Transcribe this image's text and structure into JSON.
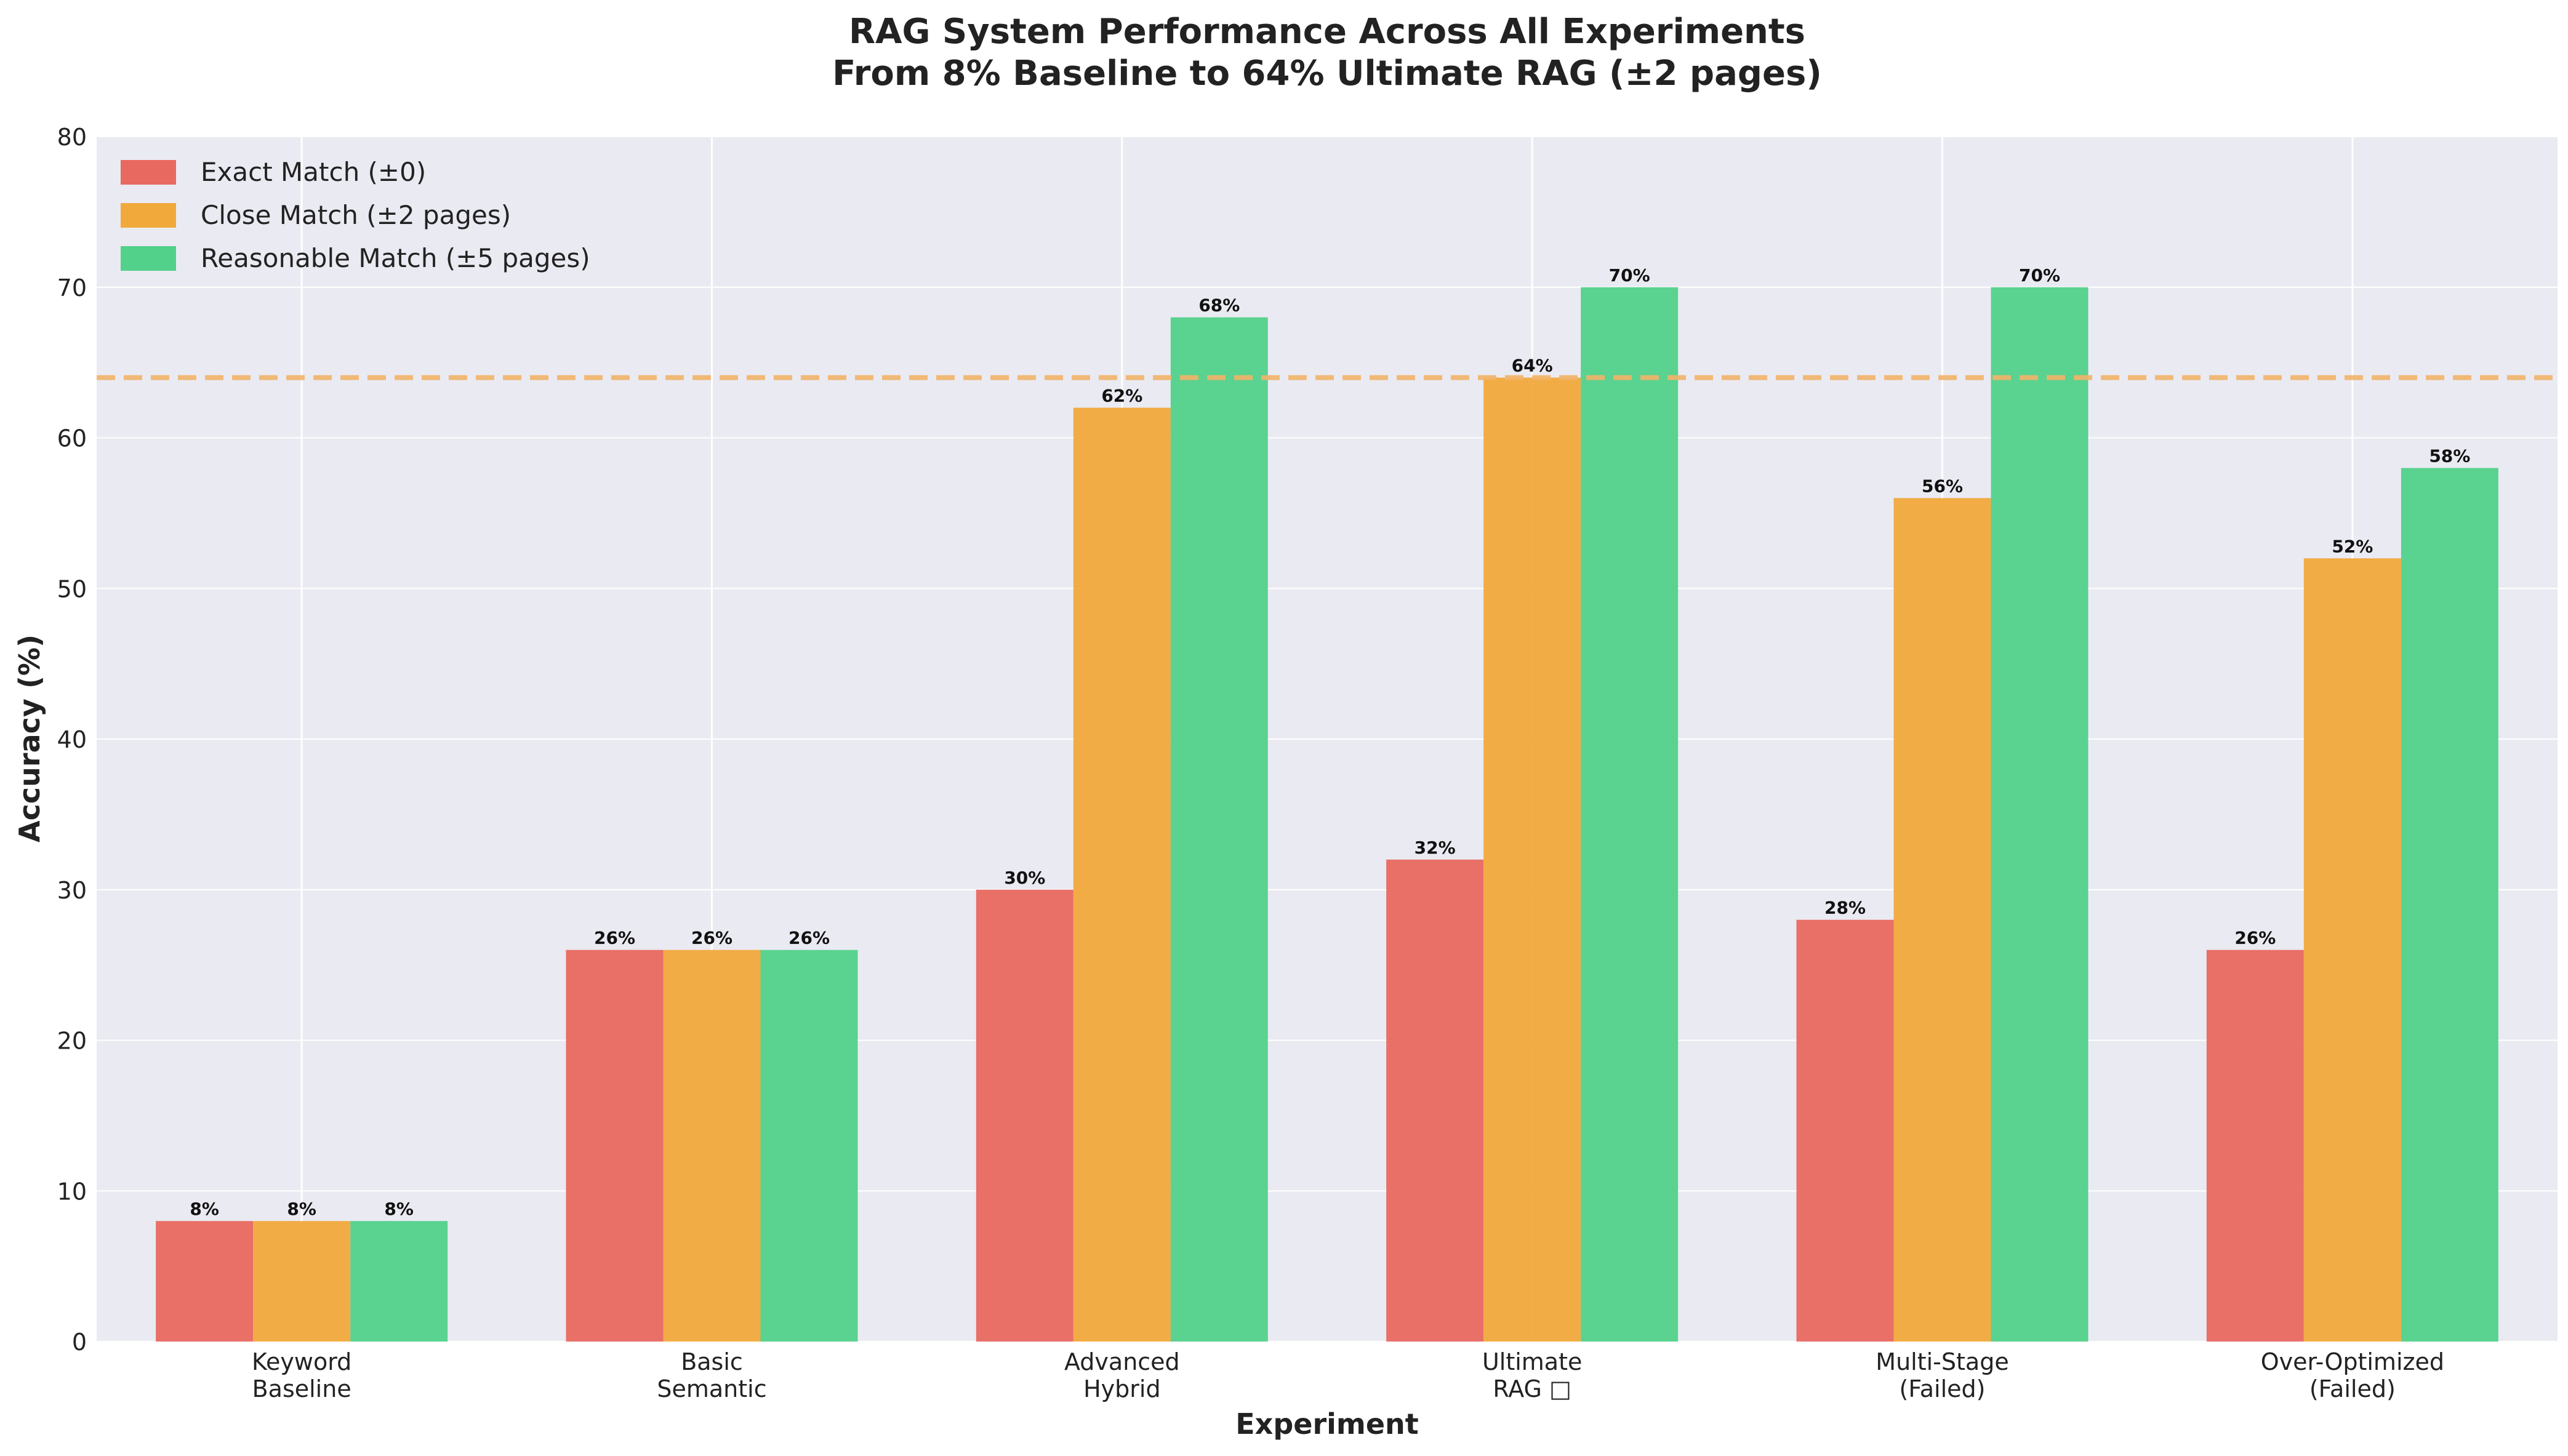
{
  "chart_data": {
    "type": "bar",
    "title": "RAG System Performance Across All Experiments",
    "subtitle": "From 8% Baseline to 64% Ultimate RAG (±2 pages)",
    "xlabel": "Experiment",
    "ylabel": "Accuracy (%)",
    "ylim": [
      0,
      80
    ],
    "yticks": [
      "0",
      "10",
      "20",
      "30",
      "40",
      "50",
      "60",
      "70",
      "80"
    ],
    "grid": true,
    "legend_position": "top-left",
    "categories": [
      [
        "Keyword",
        "Baseline"
      ],
      [
        "Basic",
        "Semantic"
      ],
      [
        "Advanced",
        "Hybrid"
      ],
      [
        "Ultimate",
        "RAG □"
      ],
      [
        "Multi-Stage",
        "(Failed)"
      ],
      [
        "Over-Optimized",
        "(Failed)"
      ]
    ],
    "series": [
      {
        "name": "Exact Match (±0)",
        "color": "#e8695f",
        "values": [
          8,
          26,
          30,
          32,
          28,
          26
        ],
        "labels": [
          "8%",
          "26%",
          "30%",
          "32%",
          "28%",
          "26%"
        ]
      },
      {
        "name": "Close Match (±2 pages)",
        "color": "#f2a93b",
        "values": [
          8,
          26,
          62,
          64,
          56,
          52
        ],
        "labels": [
          "8%",
          "26%",
          "62%",
          "64%",
          "56%",
          "52%"
        ]
      },
      {
        "name": "Reasonable Match (±5 pages)",
        "color": "#52d18a",
        "values": [
          8,
          26,
          68,
          70,
          70,
          58
        ],
        "labels": [
          "8%",
          "26%",
          "68%",
          "70%",
          "70%",
          "58%"
        ]
      }
    ],
    "reference_line": {
      "value": 64,
      "color": "#f2b46a",
      "style": "dashed"
    },
    "colors": {
      "plot_background": "#eaeaf2",
      "grid": "#ffffff"
    }
  }
}
